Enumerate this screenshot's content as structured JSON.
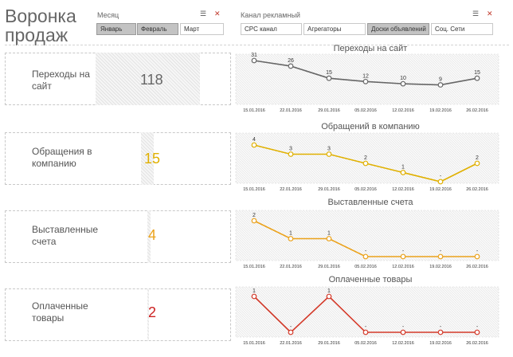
{
  "header": {
    "title": "Воронка продаж"
  },
  "filters": {
    "month": {
      "label": "Месяц",
      "options": [
        {
          "label": "Январь",
          "selected": true
        },
        {
          "label": "Февраль",
          "selected": true
        },
        {
          "label": "Март",
          "selected": false
        }
      ]
    },
    "channel": {
      "label": "Канал рекламный",
      "options": [
        {
          "label": "CPC канал",
          "selected": false
        },
        {
          "label": "Агрегаторы",
          "selected": false
        },
        {
          "label": "Доски объявлений",
          "selected": true
        },
        {
          "label": "Соц. Сети",
          "selected": false
        }
      ]
    },
    "icons": [
      "search-list-icon",
      "clear-filter-icon"
    ]
  },
  "rows": [
    {
      "label": "Переходы на сайт",
      "kpi": "118",
      "kpi_color": "#666666"
    },
    {
      "label": "Обращения в компанию",
      "kpi": "15",
      "kpi_color": "#e0b000"
    },
    {
      "label": "Выставленные счета",
      "kpi": "4",
      "kpi_color": "#eba21b"
    },
    {
      "label": "Оплаченные товары",
      "kpi": "2",
      "kpi_color": "#cc2222"
    }
  ],
  "chart_data": [
    {
      "type": "line",
      "title": "Переходы на сайт",
      "color": "#666666",
      "x": [
        "15.01.2016",
        "22.01.2016",
        "29.01.2016",
        "05.02.2016",
        "12.02.2016",
        "19.02.2016",
        "26.02.2016"
      ],
      "values": [
        31,
        26,
        15,
        12,
        10,
        9,
        15
      ],
      "value_labels": [
        "31",
        "26",
        "15",
        "12",
        "10",
        "9",
        "15"
      ]
    },
    {
      "type": "line",
      "title": "Обращений в компанию",
      "color": "#e0b000",
      "x": [
        "15.01.2016",
        "22.01.2016",
        "29.01.2016",
        "05.02.2016",
        "12.02.2016",
        "19.02.2016",
        "26.02.2016"
      ],
      "values": [
        4,
        3,
        3,
        2,
        1,
        0,
        2
      ],
      "value_labels": [
        "4",
        "3",
        "3",
        "2",
        "1",
        "-",
        "2"
      ]
    },
    {
      "type": "line",
      "title": "Выставленные счета",
      "color": "#eba21b",
      "x": [
        "15.01.2016",
        "22.01.2016",
        "29.01.2016",
        "05.02.2016",
        "12.02.2016",
        "19.02.2016",
        "26.02.2016"
      ],
      "values": [
        2,
        1,
        1,
        0,
        0,
        0,
        0
      ],
      "value_labels": [
        "2",
        "1",
        "1",
        "-",
        "-",
        "-",
        "-"
      ]
    },
    {
      "type": "line",
      "title": "Оплаченные товары",
      "color": "#d43a2a",
      "x": [
        "15.01.2016",
        "22.01.2016",
        "29.01.2016",
        "05.02.2016",
        "12.02.2016",
        "19.02.2016",
        "26.02.2016"
      ],
      "values": [
        1,
        0,
        1,
        0,
        0,
        0,
        0
      ],
      "value_labels": [
        "1",
        "-",
        "1",
        "-",
        "-",
        "-",
        "-"
      ]
    }
  ]
}
